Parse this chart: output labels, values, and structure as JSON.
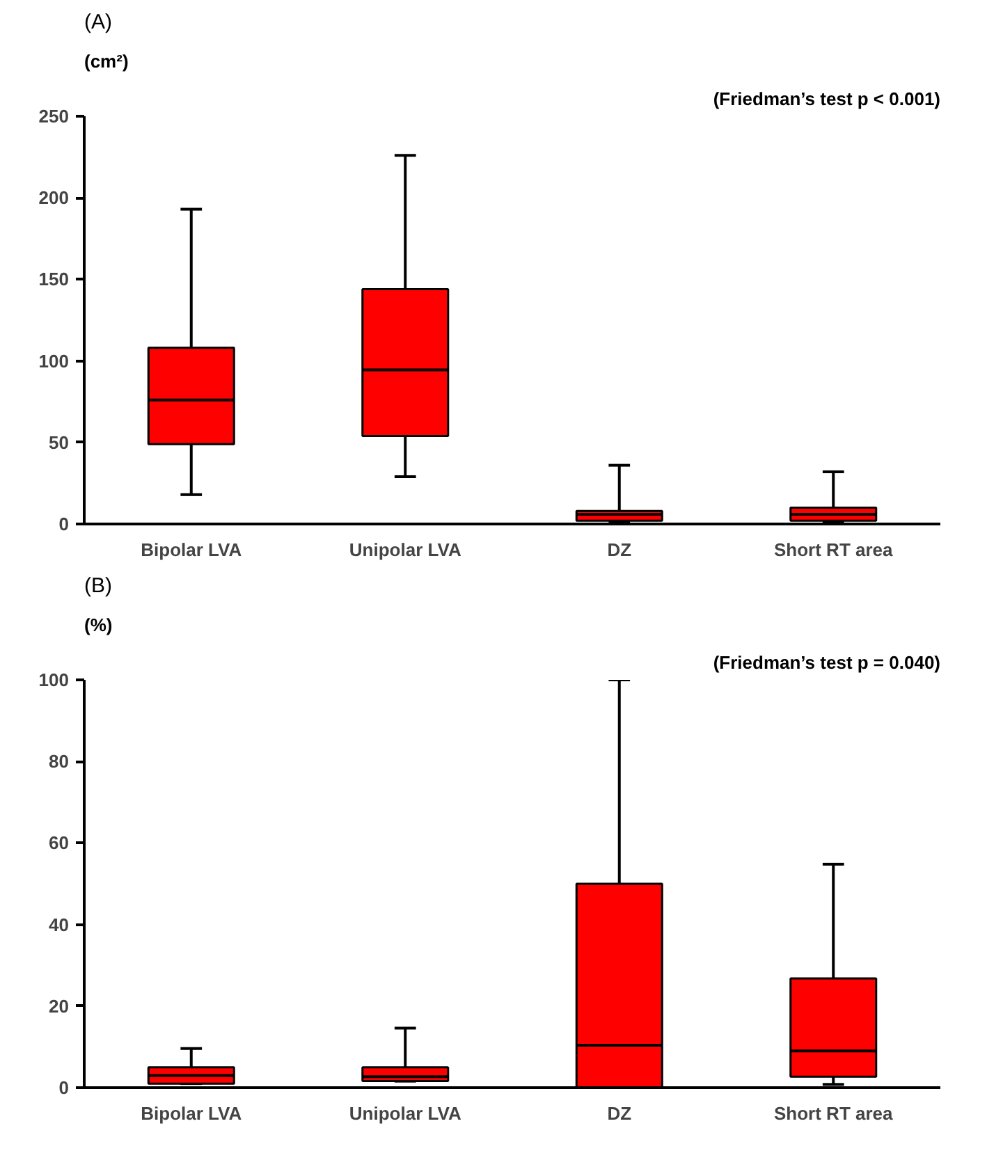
{
  "chart_data": [
    {
      "type": "box",
      "title": "(A)",
      "ylabel": "(cm²)",
      "annotations": [
        "(Friedman’s test p < 0.001)"
      ],
      "categories": [
        "Bipolar LVA",
        "Unipolar LVA",
        "DZ",
        "Short RT area"
      ],
      "color": "#ff0000",
      "ylim": [
        0,
        250
      ],
      "yticks": [
        0,
        50,
        100,
        150,
        200,
        250
      ],
      "grid": false,
      "boxes": [
        {
          "low": 18,
          "q1": 49,
          "median": 76,
          "q3": 108,
          "high": 193
        },
        {
          "low": 29,
          "q1": 54,
          "median": 94.5,
          "q3": 144,
          "high": 226
        },
        {
          "low": 1,
          "q1": 2,
          "median": 6,
          "q3": 8,
          "high": 36
        },
        {
          "low": 1,
          "q1": 2,
          "median": 6,
          "q3": 10,
          "high": 32
        }
      ]
    },
    {
      "type": "box",
      "title": "(B)",
      "ylabel": "(%)",
      "annotations": [
        "(Friedman’s test p = 0.040)"
      ],
      "categories": [
        "Bipolar LVA",
        "Unipolar LVA",
        "DZ",
        "Short RT area"
      ],
      "color": "#ff0000",
      "ylim": [
        0,
        100
      ],
      "yticks": [
        0,
        20,
        40,
        60,
        80,
        100
      ],
      "grid": false,
      "boxes": [
        {
          "low": 1,
          "q1": 1,
          "median": 3,
          "q3": 5,
          "high": 9.6
        },
        {
          "low": 1.6,
          "q1": 1.6,
          "median": 2.7,
          "q3": 5,
          "high": 14.6
        },
        {
          "low": 0,
          "q1": 0,
          "median": 10.4,
          "q3": 50,
          "high": 100
        },
        {
          "low": 0.8,
          "q1": 2.7,
          "median": 9,
          "q3": 26.8,
          "high": 54.8
        }
      ]
    }
  ]
}
